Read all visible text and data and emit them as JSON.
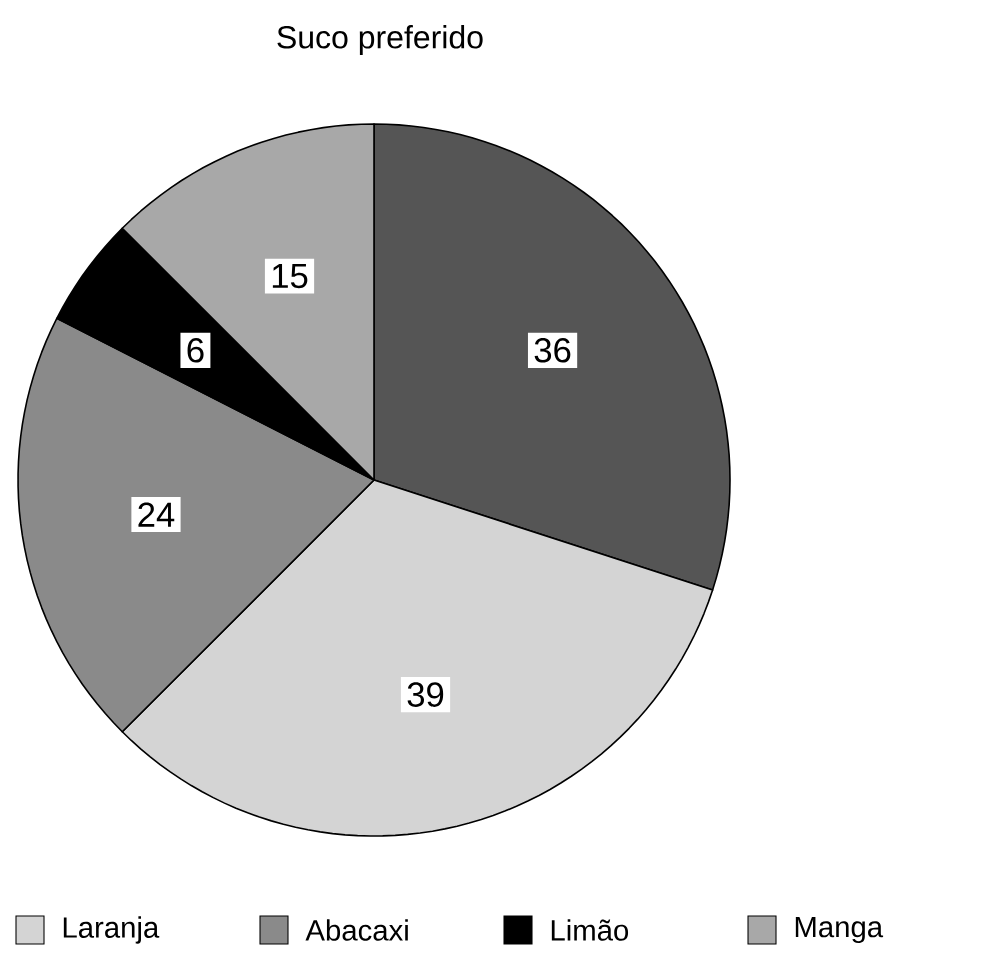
{
  "chart_data": {
    "type": "pie",
    "title": "Suco preferido",
    "categories": [
      null,
      "Laranja",
      "Abacaxi",
      "Limão",
      "Manga"
    ],
    "values": [
      36,
      39,
      24,
      6,
      15
    ],
    "colors": [
      "#555555",
      "#d4d4d4",
      "#8a8a8a",
      "#000000",
      "#a8a8a8"
    ],
    "data_labels": true,
    "legend": "bottom"
  }
}
